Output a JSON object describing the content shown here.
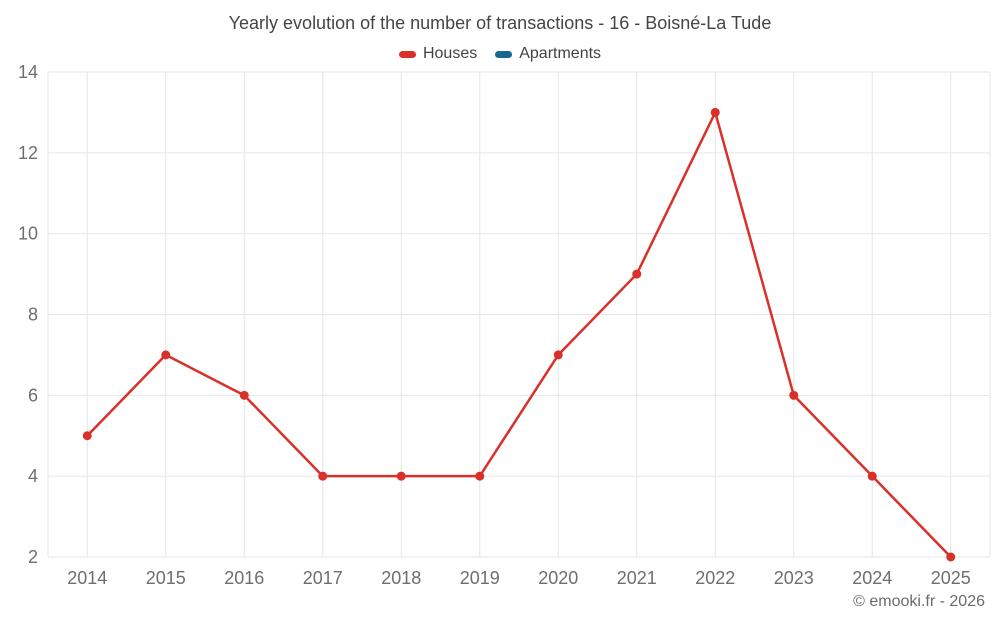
{
  "header": {
    "title": "Yearly evolution of the number of transactions - 16 - Boisné-La Tude"
  },
  "legend": [
    {
      "label": "Houses",
      "color": "#d9302a"
    },
    {
      "label": "Apartments",
      "color": "#15688f"
    }
  ],
  "chart_data": {
    "type": "line",
    "title": "Yearly evolution of the number of transactions - 16 - Boisné-La Tude",
    "categories": [
      "2014",
      "2015",
      "2016",
      "2017",
      "2018",
      "2019",
      "2020",
      "2021",
      "2022",
      "2023",
      "2024",
      "2025"
    ],
    "series": [
      {
        "name": "Houses",
        "color": "#d9302a",
        "values": [
          5,
          7,
          6,
          4,
          4,
          4,
          7,
          9,
          13,
          6,
          4,
          2
        ]
      },
      {
        "name": "Apartments",
        "color": "#15688f",
        "values": []
      }
    ],
    "xlabel": "",
    "ylabel": "",
    "ylim": [
      2,
      14
    ],
    "y_ticks": [
      2,
      4,
      6,
      8,
      10,
      12,
      14
    ],
    "grid": true,
    "legend_position": "top"
  },
  "footer": {
    "copyright": "© emooki.fr - 2026"
  },
  "colors": {
    "grid": "#e6e6e6",
    "axis_label": "#6e6e6e",
    "title": "#454545",
    "footer": "#6b6b6b"
  }
}
